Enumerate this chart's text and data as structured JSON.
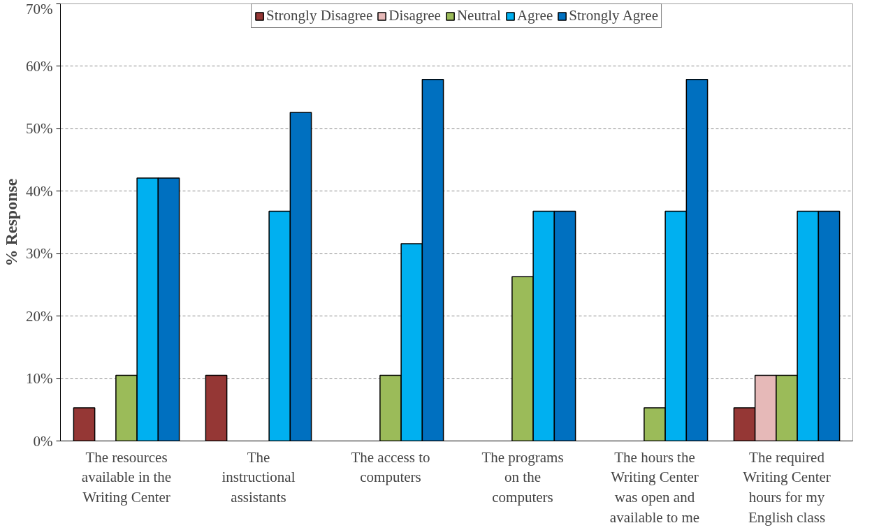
{
  "chart_data": {
    "type": "bar",
    "ylabel": "% Response",
    "categories": [
      "The resources\navailable in the\nWriting Center",
      "The\ninstructional\nassistants",
      "The access to\ncomputers",
      "The programs\non the\ncomputers",
      "The hours the\nWriting Center\nwas open and\navailable to me",
      "The required\nWriting Center\nhours for my\nEnglish class"
    ],
    "series": [
      {
        "name": "Strongly Disagree",
        "color": "#953735",
        "values": [
          5.3,
          10.5,
          0,
          0,
          0,
          5.3
        ]
      },
      {
        "name": "Disagree",
        "color": "#e6b9b8",
        "values": [
          0,
          0,
          0,
          0,
          0,
          10.5
        ]
      },
      {
        "name": "Neutral",
        "color": "#9bbb59",
        "values": [
          10.5,
          0,
          10.5,
          26.3,
          5.3,
          10.5
        ]
      },
      {
        "name": "Agree",
        "color": "#00b0f0",
        "values": [
          42.1,
          36.8,
          31.6,
          36.8,
          36.8,
          36.8
        ]
      },
      {
        "name": "Strongly Agree",
        "color": "#0070c0",
        "values": [
          42.1,
          52.6,
          57.9,
          36.8,
          57.9,
          36.8
        ]
      }
    ],
    "ylim": [
      0,
      70
    ],
    "yticks": [
      {
        "value": 0,
        "label": "0%"
      },
      {
        "value": 10,
        "label": "10%"
      },
      {
        "value": 20,
        "label": "20%"
      },
      {
        "value": 30,
        "label": "30%"
      },
      {
        "value": 40,
        "label": "40%"
      },
      {
        "value": 50,
        "label": "50%"
      },
      {
        "value": 60,
        "label": "60%"
      },
      {
        "value": 70,
        "label": "70%"
      }
    ],
    "grid": "y",
    "legend": "top"
  }
}
